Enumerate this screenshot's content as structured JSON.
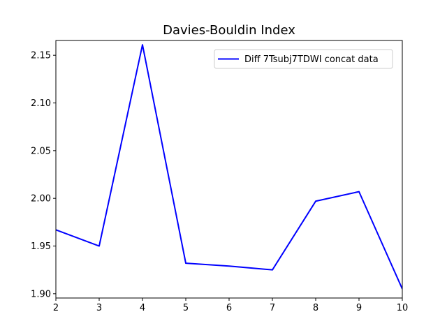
{
  "colors": {
    "background": "#ffffff",
    "axes": "#000000",
    "series": "#0000ff"
  },
  "chart_data": {
    "type": "line",
    "title": "Davies-Bouldin Index",
    "xlabel": "",
    "ylabel": "",
    "xlim": [
      2,
      10
    ],
    "ylim": [
      1.8955,
      2.1655
    ],
    "xticks": [
      2,
      3,
      4,
      5,
      6,
      7,
      8,
      9,
      10
    ],
    "xtick_labels": [
      "2",
      "3",
      "4",
      "5",
      "6",
      "7",
      "8",
      "9",
      "10"
    ],
    "yticks": [
      1.9,
      1.95,
      2.0,
      2.05,
      2.1,
      2.15
    ],
    "ytick_labels": [
      "1.90",
      "1.95",
      "2.00",
      "2.05",
      "2.10",
      "2.15"
    ],
    "grid": false,
    "legend_position": "upper right",
    "series": [
      {
        "name": "Diff 7Tsubj7TDWI concat data",
        "color": "#0000ff",
        "x": [
          2,
          3,
          4,
          5,
          6,
          7,
          8,
          9,
          10
        ],
        "y": [
          1.967,
          1.95,
          2.161,
          1.932,
          1.929,
          1.925,
          1.997,
          2.007,
          1.905
        ]
      }
    ]
  }
}
